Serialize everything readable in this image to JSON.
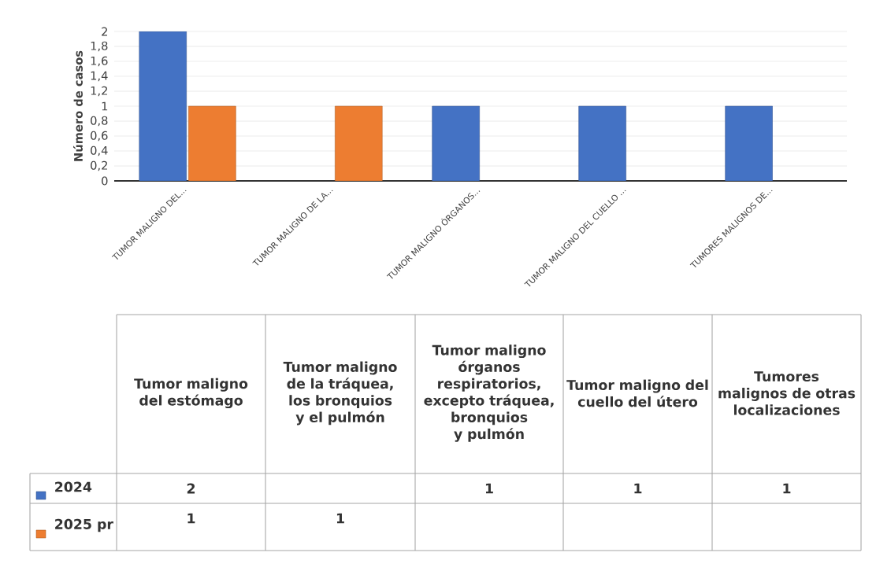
{
  "chart_data": {
    "type": "bar",
    "ylabel": "Número de casos",
    "categories": [
      "TUMOR MALIGNO DEL...",
      "TUMOR MALIGNO DE LA...",
      "TUMOR MALIGNO ÓRGANOS...",
      "TUMOR MALIGNO DEL CUELLO ...",
      "TUMORES MALIGNOS DE..."
    ],
    "series": [
      {
        "name": "2024",
        "color": "#4472c4",
        "values": [
          2,
          null,
          1,
          1,
          1
        ]
      },
      {
        "name": "2025 pr",
        "color": "#ed7d31",
        "values": [
          1,
          1,
          null,
          null,
          null
        ]
      }
    ],
    "ylim": [
      0,
      2
    ],
    "yticks": [
      0,
      {
        "value": 0.2,
        "label": "0,2"
      },
      {
        "value": 0.4,
        "label": "0,4"
      },
      {
        "value": 0.6,
        "label": "0,6"
      },
      {
        "value": 0.8,
        "label": "0,8"
      },
      1,
      {
        "value": 1.2,
        "label": "1,2"
      },
      {
        "value": 1.4,
        "label": "1,4"
      },
      {
        "value": 1.6,
        "label": "1,6"
      },
      {
        "value": 1.8,
        "label": "1,8"
      },
      2
    ],
    "grid": "y",
    "data_labels": true,
    "legend": "bottom left",
    "annotations": [
      "Tumor maligno del estómago",
      "Tumor maligno de la tráquea, los bronquios y el pulmón",
      "Tumor maligno órganos respiratorios, excepto tráquea, bronquios y pulmón",
      "Tumor maligno del cuello del útero",
      "Tumores malignos de otras localizaciones"
    ]
  }
}
